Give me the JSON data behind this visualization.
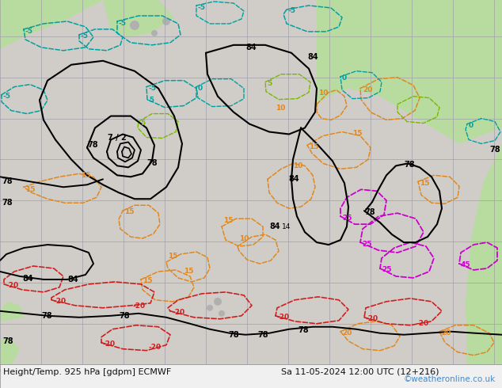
{
  "title_left": "Height/Temp. 925 hPa [gdpm] ECMWF",
  "title_right": "Sa 11-05-2024 12:00 UTC (12+216)",
  "watermark": "©weatheronline.co.uk",
  "figsize": [
    6.34,
    4.9
  ],
  "dpi": 100,
  "watermark_color": "#4488cc",
  "ocean_color": "#d0d0d0",
  "land_green_color": "#b8dca0",
  "land_gray_color": "#b0b0b0",
  "grid_color": "#a0a0a8",
  "black_line_color": "#000000",
  "orange_color": "#e08820",
  "cyan_color": "#00a0a0",
  "green_color": "#78b800",
  "red_color": "#cc2020",
  "magenta_color": "#cc00cc",
  "teal_color": "#008888"
}
